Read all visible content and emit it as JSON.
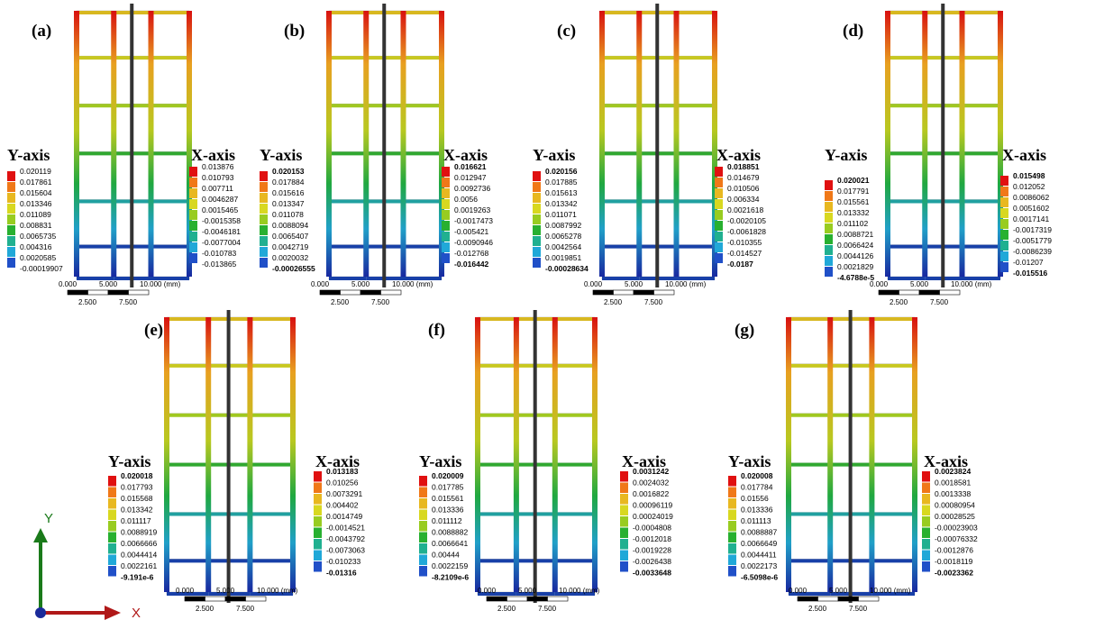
{
  "panels": [
    {
      "label": "(a)",
      "y_heading": "Y-axis",
      "x_heading": "X-axis",
      "y_legend": [
        "0.020119",
        "0.017861",
        "0.015604",
        "0.013346",
        "0.011089",
        "0.008831",
        "0.0065735",
        "0.004316",
        "0.0020585",
        "-0.00019907"
      ],
      "x_legend": [
        "0.013876",
        "0.010793",
        "0.007711",
        "0.0046287",
        "0.0015465",
        "-0.0015358",
        "-0.0046181",
        "-0.0077004",
        "-0.010783",
        "-0.013865"
      ],
      "scale": [
        "0.000",
        "5.000",
        "10.000 (mm)",
        "2.500",
        "7.500"
      ]
    },
    {
      "label": "(b)",
      "y_heading": "Y-axis",
      "x_heading": "X-axis",
      "y_legend": [
        "0.020153",
        "0.017884",
        "0.015616",
        "0.013347",
        "0.011078",
        "0.0088094",
        "0.0065407",
        "0.0042719",
        "0.0020032",
        "-0.00026555"
      ],
      "x_legend": [
        "0.016621",
        "0.012947",
        "0.0092736",
        "0.0056",
        "0.0019263",
        "-0.0017473",
        "-0.005421",
        "-0.0090946",
        "-0.012768",
        "-0.016442"
      ],
      "scale": [
        "0.000",
        "5.000",
        "10.000 (mm)",
        "2.500",
        "7.500"
      ]
    },
    {
      "label": "(c)",
      "y_heading": "Y-axis",
      "x_heading": "X-axis",
      "y_legend": [
        "0.020156",
        "0.017885",
        "0.015613",
        "0.013342",
        "0.011071",
        "0.0087992",
        "0.0065278",
        "0.0042564",
        "0.0019851",
        "-0.00028634"
      ],
      "x_legend": [
        "0.018851",
        "0.014679",
        "0.010506",
        "0.006334",
        "0.0021618",
        "-0.0020105",
        "-0.0061828",
        "-0.010355",
        "-0.014527",
        "-0.0187"
      ],
      "scale": [
        "0.000",
        "5.000",
        "10.000 (mm)",
        "2.500",
        "7.500"
      ]
    },
    {
      "label": "(d)",
      "y_heading": "Y-axis",
      "x_heading": "X-axis",
      "y_legend": [
        "0.020021",
        "0.017791",
        "0.015561",
        "0.013332",
        "0.011102",
        "0.0088721",
        "0.0066424",
        "0.0044126",
        "0.0021829",
        "-4.6788e-5"
      ],
      "x_legend": [
        "0.015498",
        "0.012052",
        "0.0086062",
        "0.0051602",
        "0.0017141",
        "-0.0017319",
        "-0.0051779",
        "-0.0086239",
        "-0.01207",
        "-0.015516"
      ],
      "scale": [
        "0.000",
        "5.000",
        "10.000 (mm)",
        "2.500",
        "7.500"
      ]
    },
    {
      "label": "(e)",
      "y_heading": "Y-axis",
      "x_heading": "X-axis",
      "y_legend": [
        "0.020018",
        "0.017793",
        "0.015568",
        "0.013342",
        "0.011117",
        "0.0088919",
        "0.0066666",
        "0.0044414",
        "0.0022161",
        "-9.191e-6"
      ],
      "x_legend": [
        "0.013183",
        "0.010256",
        "0.0073291",
        "0.004402",
        "0.0014749",
        "-0.0014521",
        "-0.0043792",
        "-0.0073063",
        "-0.010233",
        "-0.01316"
      ],
      "scale": [
        "0.000",
        "5.000",
        "10.000 (mm)",
        "2.500",
        "7.500"
      ]
    },
    {
      "label": "(f)",
      "y_heading": "Y-axis",
      "x_heading": "X-axis",
      "y_legend": [
        "0.020009",
        "0.017785",
        "0.015561",
        "0.013336",
        "0.011112",
        "0.0088882",
        "0.0066641",
        "0.00444",
        "0.0022159",
        "-8.2109e-6"
      ],
      "x_legend": [
        "0.0031242",
        "0.0024032",
        "0.0016822",
        "0.00096119",
        "0.00024019",
        "-0.0004808",
        "-0.0012018",
        "-0.0019228",
        "-0.0026438",
        "-0.0033648"
      ],
      "scale": [
        "0.000",
        "5.000",
        "10.000 (mm)",
        "2.500",
        "7.500"
      ]
    },
    {
      "label": "(g)",
      "y_heading": "Y-axis",
      "x_heading": "X-axis",
      "y_legend": [
        "0.020008",
        "0.017784",
        "0.01556",
        "0.013336",
        "0.011113",
        "0.0088887",
        "0.0066649",
        "0.0044411",
        "0.0022173",
        "-6.5098e-6"
      ],
      "x_legend": [
        "0.0023824",
        "0.0018581",
        "0.0013338",
        "0.00080954",
        "0.00028525",
        "-0.00023903",
        "-0.00076332",
        "-0.0012876",
        "-0.0018119",
        "-0.0023362"
      ],
      "scale": [
        "0.000",
        "5.000",
        "10.000 (mm)",
        "2.500",
        "7.500"
      ]
    }
  ],
  "triad": {
    "y": "Y",
    "x": "X"
  }
}
